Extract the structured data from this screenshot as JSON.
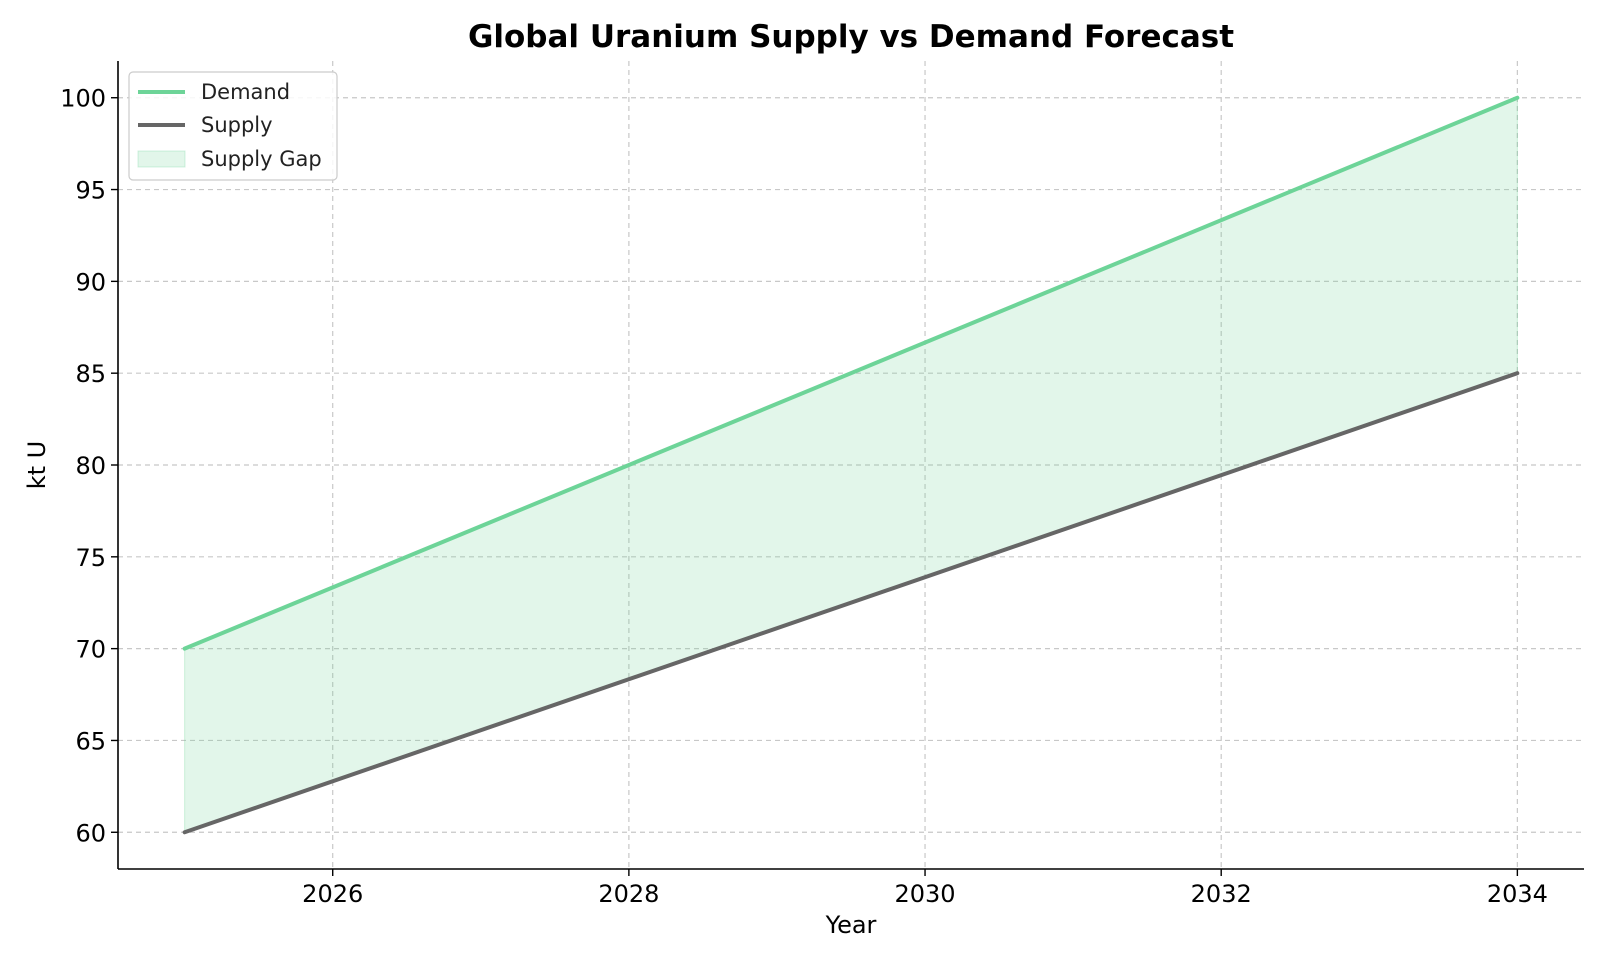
{
  "chart_data": {
    "type": "line",
    "title": "Global Uranium Supply vs Demand Forecast",
    "xlabel": "Year",
    "ylabel": "kt U",
    "x": [
      2025,
      2034
    ],
    "xlim": [
      2024.55,
      2034.45
    ],
    "ylim": [
      58,
      102
    ],
    "xticks": [
      2026,
      2028,
      2030,
      2032,
      2034
    ],
    "yticks": [
      60,
      65,
      70,
      75,
      80,
      85,
      90,
      95,
      100
    ],
    "grid": true,
    "legend_position": "top-left",
    "series": [
      {
        "name": "Demand",
        "values": [
          70,
          100
        ],
        "color": "#6dd498"
      },
      {
        "name": "Supply",
        "values": [
          60,
          85
        ],
        "color": "#666666"
      }
    ],
    "fill": {
      "name": "Supply Gap",
      "between": [
        "Demand",
        "Supply"
      ],
      "color": "#6dd498",
      "opacity": 0.2
    }
  }
}
